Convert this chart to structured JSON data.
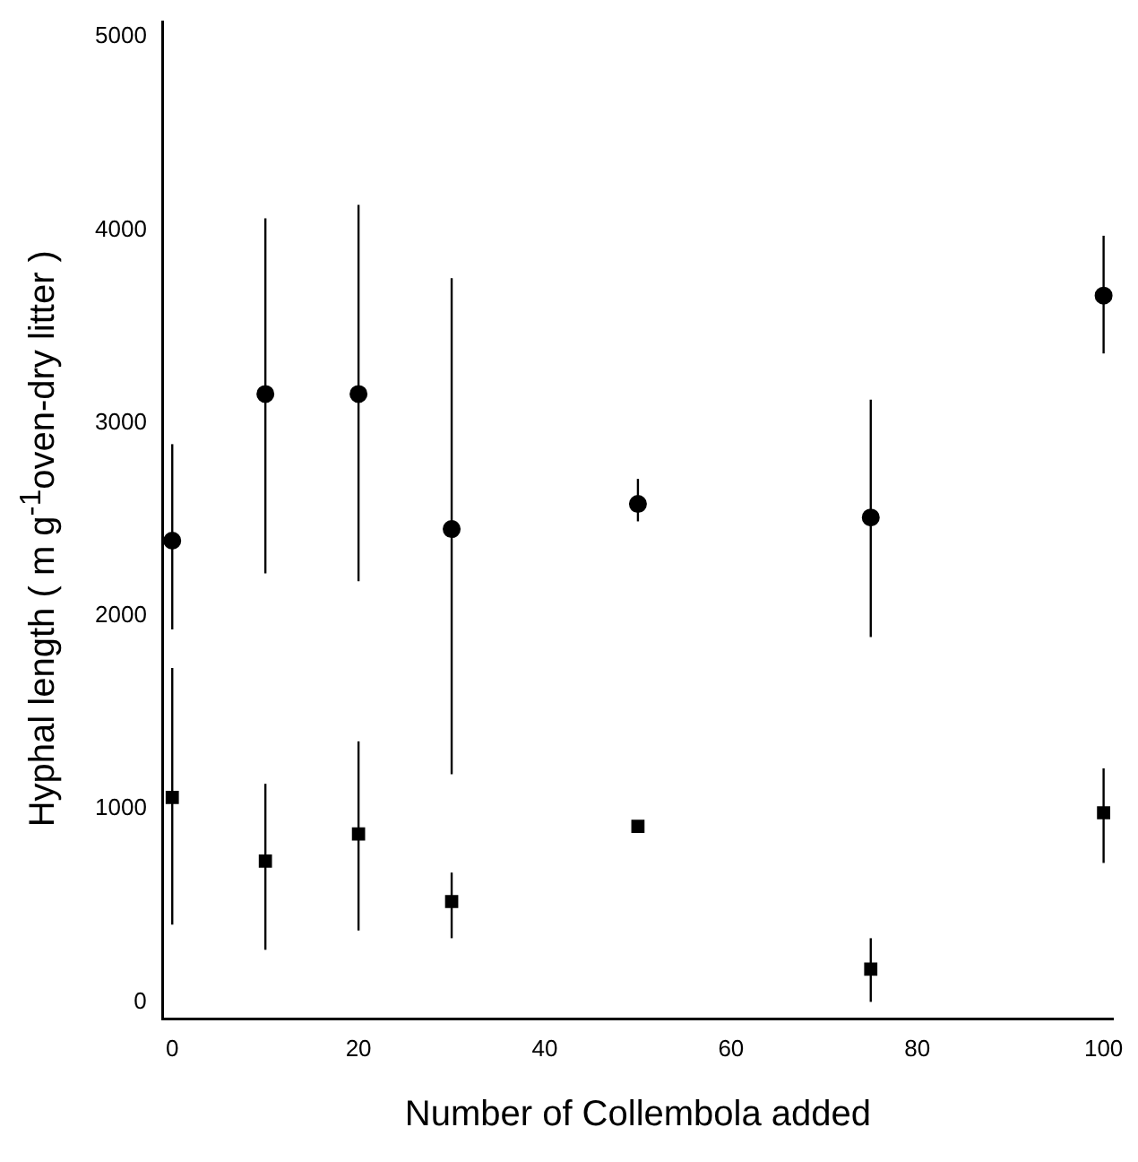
{
  "chart_data": {
    "type": "scatter",
    "xlabel": "Number of Collembola added",
    "ylabel": "Hyphal length ( m g$^{-1}$oven-dry litter )",
    "x": [
      0,
      10,
      20,
      30,
      50,
      75,
      100
    ],
    "series": [
      {
        "color": "#000000",
        "marker": "circle",
        "values": [
          2390,
          3150,
          3150,
          2450,
          2580,
          2510,
          3660
        ],
        "errors": [
          [
            1930,
            2890
          ],
          [
            2220,
            4060
          ],
          [
            2180,
            4130
          ],
          [
            1180,
            3750
          ],
          [
            2490,
            2710
          ],
          [
            1890,
            3120
          ],
          [
            3360,
            3970
          ]
        ]
      },
      {
        "color": "#000000",
        "marker": "square",
        "values": [
          1060,
          730,
          870,
          520,
          910,
          170,
          980
        ],
        "errors": [
          [
            400,
            1730
          ],
          [
            270,
            1130
          ],
          [
            370,
            1350
          ],
          [
            330,
            670
          ],
          null,
          [
            0,
            330
          ],
          [
            720,
            1210
          ]
        ]
      }
    ],
    "xlim": [
      -1,
      101
    ],
    "xticks": [
      0,
      20,
      40,
      60,
      80,
      100
    ],
    "ylim": [
      -90,
      5080
    ],
    "yticks": [
      0,
      1000,
      2000,
      3000,
      4000,
      5000
    ],
    "grid": false,
    "legend": false
  }
}
